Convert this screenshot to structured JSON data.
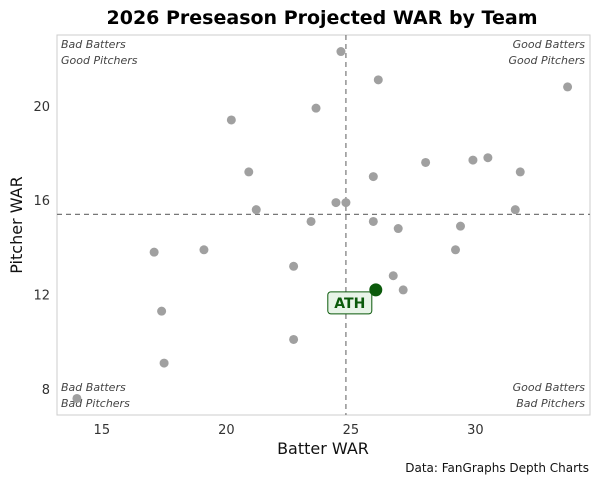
{
  "chart_data": {
    "type": "scatter",
    "title": "2026 Preseason Projected WAR by Team",
    "xlabel": "Batter WAR",
    "ylabel": "Pitcher WAR",
    "caption": "Data: FanGraphs Depth Charts",
    "xlim": [
      13.2,
      34.6
    ],
    "ylim": [
      6.9,
      23.0
    ],
    "xticks": [
      15,
      20,
      25,
      30
    ],
    "yticks": [
      8,
      12,
      16,
      20
    ],
    "grid": false,
    "x_reference": 24.8,
    "y_reference": 15.4,
    "quadrant_labels": {
      "top_left": [
        "Bad Batters",
        "Good Pitchers"
      ],
      "top_right": [
        "Good Batters",
        "Good Pitchers"
      ],
      "bottom_left": [
        "Bad Batters",
        "Bad Pitchers"
      ],
      "bottom_right": [
        "Good Batters",
        "Bad Pitchers"
      ]
    },
    "point_color": "#a0a0a0",
    "highlight_color": "#0b5a0b",
    "points": [
      {
        "x": 24.6,
        "y": 22.3
      },
      {
        "x": 26.1,
        "y": 21.1
      },
      {
        "x": 33.7,
        "y": 20.8
      },
      {
        "x": 23.6,
        "y": 19.9
      },
      {
        "x": 20.2,
        "y": 19.4
      },
      {
        "x": 28.0,
        "y": 17.6
      },
      {
        "x": 29.9,
        "y": 17.7
      },
      {
        "x": 30.5,
        "y": 17.8
      },
      {
        "x": 20.9,
        "y": 17.2
      },
      {
        "x": 25.9,
        "y": 17.0
      },
      {
        "x": 31.8,
        "y": 17.2
      },
      {
        "x": 24.4,
        "y": 15.9
      },
      {
        "x": 24.8,
        "y": 15.9
      },
      {
        "x": 21.2,
        "y": 15.6
      },
      {
        "x": 31.6,
        "y": 15.6
      },
      {
        "x": 23.4,
        "y": 15.1
      },
      {
        "x": 25.9,
        "y": 15.1
      },
      {
        "x": 29.4,
        "y": 14.9
      },
      {
        "x": 26.9,
        "y": 14.8
      },
      {
        "x": 17.1,
        "y": 13.8
      },
      {
        "x": 19.1,
        "y": 13.9
      },
      {
        "x": 29.2,
        "y": 13.9
      },
      {
        "x": 22.7,
        "y": 13.2
      },
      {
        "x": 26.7,
        "y": 12.8
      },
      {
        "x": 27.1,
        "y": 12.2
      },
      {
        "x": 17.4,
        "y": 11.3
      },
      {
        "x": 22.7,
        "y": 10.1
      },
      {
        "x": 17.5,
        "y": 9.1
      },
      {
        "x": 14.0,
        "y": 7.6
      }
    ],
    "highlight": {
      "label": "ATH",
      "x": 26.0,
      "y": 12.2
    }
  }
}
